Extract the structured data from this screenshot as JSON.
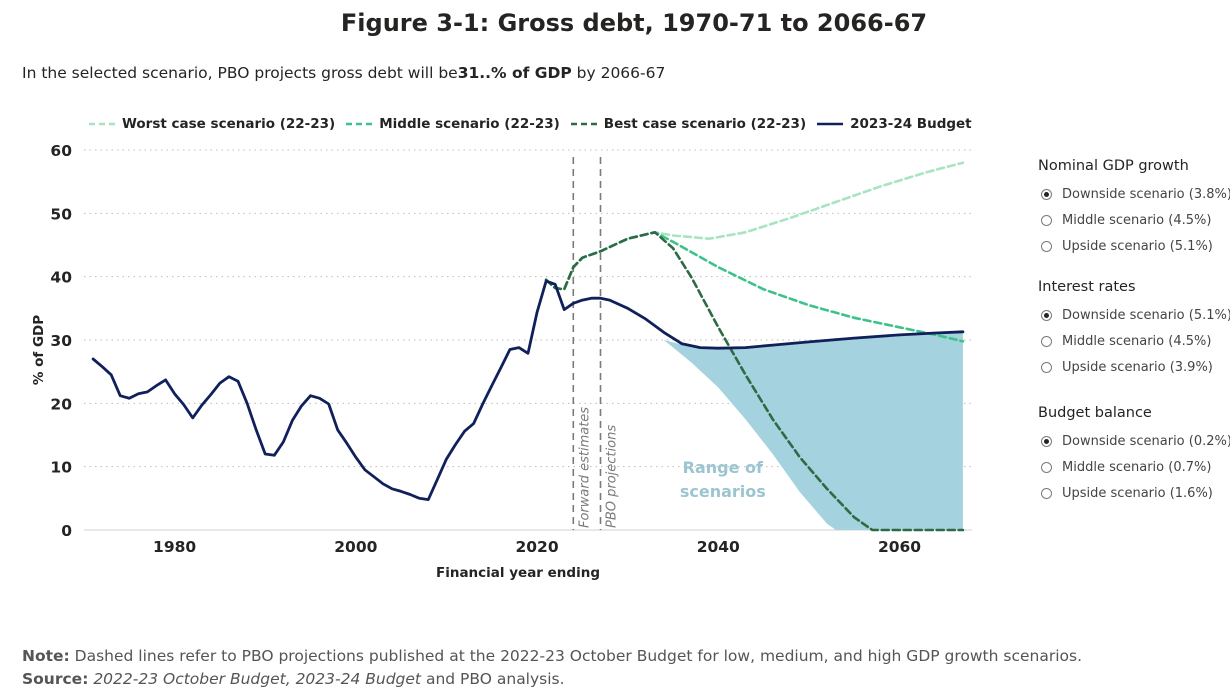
{
  "figure": {
    "title": "Figure 3-1: Gross debt, 1970-71 to 2066-67",
    "subtitle_prefix": "In the selected scenario, PBO projects gross debt will be",
    "subtitle_value": "31..% of GDP",
    "subtitle_suffix": " by 2066-67"
  },
  "panel": {
    "groups": [
      {
        "title": "Nominal GDP growth",
        "options": [
          {
            "label": "Downside scenario (3.8%)",
            "checked": true
          },
          {
            "label": "Middle scenario (4.5%)",
            "checked": false
          },
          {
            "label": "Upside scenario (5.1%)",
            "checked": false
          }
        ]
      },
      {
        "title": "Interest rates",
        "options": [
          {
            "label": "Downside scenario (5.1%)",
            "checked": true
          },
          {
            "label": "Middle scenario (4.5%)",
            "checked": false
          },
          {
            "label": "Upside scenario (3.9%)",
            "checked": false
          }
        ]
      },
      {
        "title": "Budget balance",
        "options": [
          {
            "label": "Downside scenario (0.2%)",
            "checked": true
          },
          {
            "label": "Middle scenario (0.7%)",
            "checked": false
          },
          {
            "label": "Upside scenario (1.6%)",
            "checked": false
          }
        ]
      }
    ]
  },
  "footer": {
    "note_label": "Note:",
    "note_text": " Dashed lines refer to PBO projections published at the 2022-23 October Budget for low, medium, and high GDP growth scenarios.",
    "source_label": "Source:",
    "source_italic": " 2022-23 October Budget, 2023-24 Budget",
    "source_text": " and PBO analysis."
  },
  "chart_data": {
    "type": "line",
    "xlabel": "Financial year ending",
    "ylabel": "% of GDP",
    "xlim": [
      1970,
      2068
    ],
    "ylim": [
      0,
      60
    ],
    "xticks": [
      1980,
      2000,
      2020,
      2040,
      2060
    ],
    "yticks": [
      0,
      10,
      20,
      30,
      40,
      50,
      60
    ],
    "grid": "horizontal dotted",
    "legend_position": "top",
    "vlines": [
      {
        "x": 2024,
        "label": "Forward estimates"
      },
      {
        "x": 2027,
        "label": "PBO projections"
      }
    ],
    "annotation": {
      "text": "Range of scenarios",
      "x": 2040.5,
      "y": 9
    },
    "range_band": {
      "x": [
        2034,
        2037,
        2040,
        2043,
        2046,
        2049,
        2052,
        2053,
        2067
      ],
      "lower": [
        30,
        26.5,
        22.5,
        17.5,
        12,
        6,
        1,
        0,
        0
      ],
      "upper": [
        30,
        28.9,
        28.7,
        28.8,
        29.2,
        29.6,
        30.1,
        30.3,
        31.3
      ]
    },
    "series": [
      {
        "name": "Worst case scenario (22-23)",
        "color": "#a8e4c0",
        "style": "dashed",
        "x": [
          2021,
          2022,
          2023,
          2024,
          2025,
          2027,
          2030,
          2033,
          2035,
          2039,
          2043,
          2048,
          2053,
          2058,
          2063,
          2067
        ],
        "y": [
          39.5,
          38.2,
          38,
          41.5,
          43,
          44,
          46,
          47,
          46.5,
          46,
          47,
          49.3,
          51.8,
          54.3,
          56.5,
          58
        ]
      },
      {
        "name": "Middle scenario (22-23)",
        "color": "#3dc28a",
        "style": "dashed",
        "x": [
          2021,
          2022,
          2023,
          2024,
          2025,
          2027,
          2030,
          2033,
          2035,
          2040,
          2045,
          2050,
          2055,
          2060,
          2064,
          2067
        ],
        "y": [
          39.5,
          38.2,
          38,
          41.5,
          43,
          44,
          46,
          47,
          45.5,
          41.5,
          38,
          35.5,
          33.5,
          32,
          30.8,
          29.8
        ]
      },
      {
        "name": "Best case scenario (22-23)",
        "color": "#2e6b45",
        "style": "dashed",
        "x": [
          2021,
          2022,
          2023,
          2024,
          2025,
          2027,
          2030,
          2033,
          2035,
          2037,
          2040,
          2043,
          2046,
          2049,
          2052,
          2055,
          2057,
          2060,
          2067
        ],
        "y": [
          39.5,
          38.2,
          38,
          41.5,
          43,
          44,
          46,
          47,
          44.5,
          40,
          32,
          24.5,
          17.5,
          11.5,
          6.5,
          2,
          0,
          0,
          0
        ]
      },
      {
        "name": "2023-24 Budget",
        "color": "#10205a",
        "style": "solid",
        "x": [
          1971,
          1972,
          1973,
          1974,
          1975,
          1976,
          1977,
          1978,
          1979,
          1980,
          1981,
          1982,
          1983,
          1984,
          1985,
          1986,
          1987,
          1988,
          1989,
          1990,
          1991,
          1992,
          1993,
          1994,
          1995,
          1996,
          1997,
          1998,
          1999,
          2000,
          2001,
          2002,
          2003,
          2004,
          2005,
          2006,
          2007,
          2008,
          2009,
          2010,
          2011,
          2012,
          2013,
          2014,
          2015,
          2016,
          2017,
          2018,
          2019,
          2020,
          2021,
          2022,
          2023,
          2024,
          2025,
          2026,
          2027,
          2028,
          2030,
          2032,
          2034,
          2036,
          2038,
          2040,
          2043,
          2046,
          2050,
          2055,
          2060,
          2064,
          2067
        ],
        "y": [
          27,
          25.8,
          24.5,
          21.2,
          20.8,
          21.5,
          21.8,
          22.8,
          23.7,
          21.5,
          19.8,
          17.7,
          19.7,
          21.4,
          23.2,
          24.2,
          23.5,
          20,
          15.8,
          12,
          11.8,
          13.9,
          17.3,
          19.6,
          21.2,
          20.8,
          19.9,
          15.8,
          13.7,
          11.5,
          9.5,
          8.4,
          7.3,
          6.5,
          6.1,
          5.6,
          5,
          4.8,
          8,
          11.2,
          13.5,
          15.6,
          16.8,
          19.9,
          22.8,
          25.6,
          28.5,
          28.8,
          27.9,
          34.4,
          39.3,
          38.8,
          34.8,
          35.8,
          36.3,
          36.6,
          36.6,
          36.3,
          35,
          33.3,
          31.2,
          29.4,
          28.8,
          28.7,
          28.8,
          29.2,
          29.7,
          30.3,
          30.8,
          31.1,
          31.3
        ]
      }
    ]
  }
}
